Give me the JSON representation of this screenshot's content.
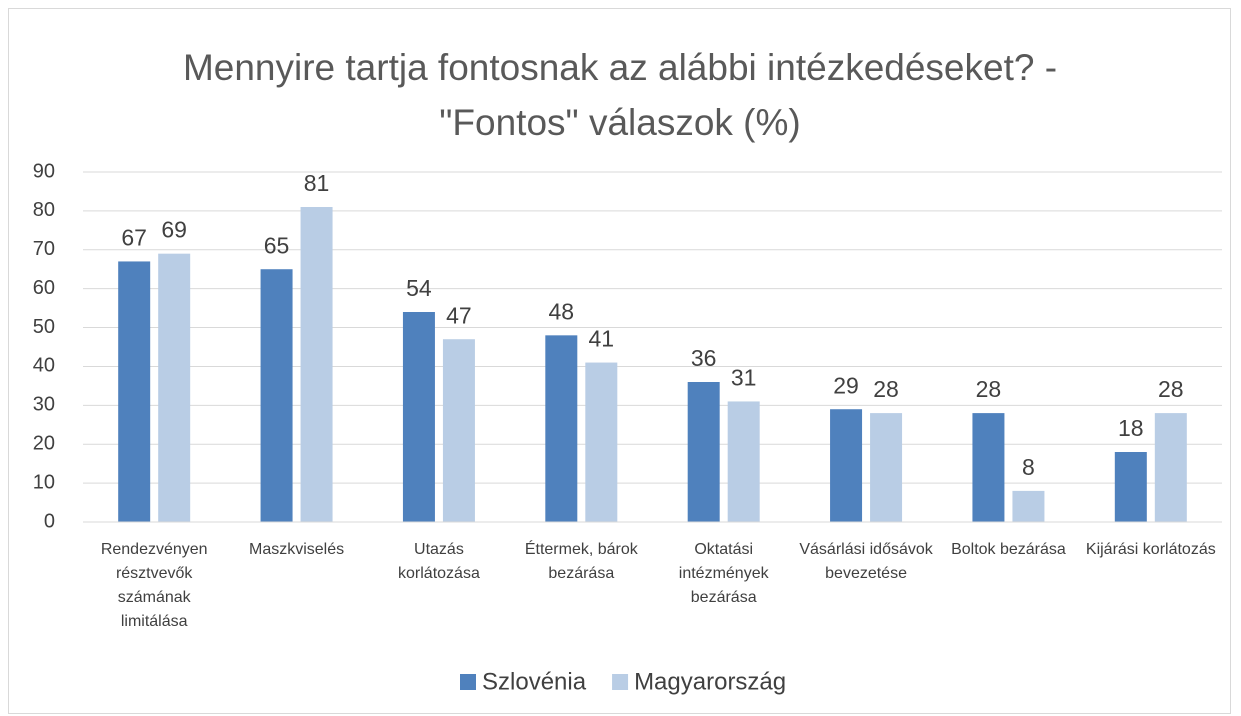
{
  "chart_data": {
    "type": "bar",
    "title": "Mennyire tartja fontosnak az alábbi intézkedéseket? - \"Fontos\" válaszok (%)",
    "categories": [
      "Rendezvényen résztvevők számának limitálása",
      "Maszkviselés",
      "Utazás korlátozása",
      "Éttermek, bárok bezárása",
      "Oktatási intézmények bezárása",
      "Vásárlási idősávok bevezetése",
      "Boltok bezárása",
      "Kijárási korlátozás"
    ],
    "series": [
      {
        "name": "Szlovénia",
        "color": "#4f81bd",
        "values": [
          67,
          65,
          54,
          48,
          36,
          29,
          28,
          18
        ]
      },
      {
        "name": "Magyarország",
        "color": "#b9cde5",
        "values": [
          69,
          81,
          47,
          41,
          31,
          28,
          8,
          28
        ]
      }
    ],
    "ylim": [
      0,
      90
    ],
    "yticks": [
      0,
      10,
      20,
      30,
      40,
      50,
      60,
      70,
      80,
      90
    ],
    "grid": true,
    "legend": "bottom"
  }
}
